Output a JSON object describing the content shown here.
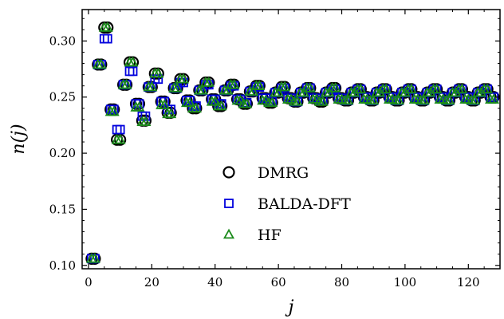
{
  "chart_data": {
    "type": "scatter",
    "title": "",
    "xlabel": "j",
    "ylabel": "n(j)",
    "xlim": [
      -2,
      130
    ],
    "ylim": [
      0.097,
      0.328
    ],
    "xticks": [
      0,
      20,
      40,
      60,
      80,
      100,
      120
    ],
    "yticks": [
      0.1,
      0.15,
      0.2,
      0.25,
      0.3
    ],
    "xtick_labels": [
      "0",
      "20",
      "40",
      "60",
      "80",
      "100",
      "120"
    ],
    "ytick_labels": [
      "0.10",
      "0.15",
      "0.20",
      "0.25",
      "0.30"
    ],
    "grid": false,
    "legend_position": "center-left",
    "x": [
      1,
      2,
      3,
      4,
      5,
      6,
      7,
      8,
      9,
      10,
      11,
      12,
      13,
      14,
      15,
      16,
      17,
      18,
      19,
      20,
      21,
      22,
      23,
      24,
      25,
      26,
      27,
      28,
      29,
      30,
      31,
      32,
      33,
      34,
      35,
      36,
      37,
      38,
      39,
      40,
      41,
      42,
      43,
      44,
      45,
      46,
      47,
      48,
      49,
      50,
      51,
      52,
      53,
      54,
      55,
      56,
      57,
      58,
      59,
      60,
      61,
      62,
      63,
      64,
      65,
      66,
      67,
      68,
      69,
      70,
      71,
      72,
      73,
      74,
      75,
      76,
      77,
      78,
      79,
      80,
      81,
      82,
      83,
      84,
      85,
      86,
      87,
      88,
      89,
      90,
      91,
      92,
      93,
      94,
      95,
      96,
      97,
      98,
      99,
      100,
      101,
      102,
      103,
      104,
      105,
      106,
      107,
      108,
      109,
      110,
      111,
      112,
      113,
      114,
      115,
      116,
      117,
      118,
      119,
      120,
      121,
      122,
      123,
      124,
      125,
      126,
      127,
      128
    ],
    "series": [
      {
        "name": "DMRG",
        "color": "#000000",
        "marker": "circle",
        "values": [
          0.106,
          0.106,
          0.279,
          0.279,
          0.312,
          0.312,
          0.239,
          0.239,
          0.212,
          0.212,
          0.261,
          0.261,
          0.281,
          0.281,
          0.244,
          0.244,
          0.229,
          0.229,
          0.259,
          0.259,
          0.271,
          0.271,
          0.246,
          0.246,
          0.236,
          0.236,
          0.258,
          0.258,
          0.266,
          0.266,
          0.247,
          0.247,
          0.24,
          0.24,
          0.256,
          0.256,
          0.263,
          0.263,
          0.248,
          0.248,
          0.242,
          0.242,
          0.256,
          0.256,
          0.261,
          0.261,
          0.248,
          0.248,
          0.244,
          0.244,
          0.255,
          0.255,
          0.26,
          0.26,
          0.249,
          0.249,
          0.245,
          0.245,
          0.254,
          0.254,
          0.259,
          0.259,
          0.249,
          0.249,
          0.246,
          0.246,
          0.254,
          0.254,
          0.258,
          0.258,
          0.249,
          0.249,
          0.246,
          0.246,
          0.254,
          0.254,
          0.258,
          0.258,
          0.249,
          0.249,
          0.247,
          0.247,
          0.254,
          0.254,
          0.257,
          0.257,
          0.25,
          0.25,
          0.247,
          0.247,
          0.254,
          0.254,
          0.257,
          0.257,
          0.25,
          0.25,
          0.247,
          0.247,
          0.254,
          0.254,
          0.257,
          0.257,
          0.25,
          0.25,
          0.247,
          0.247,
          0.254,
          0.254,
          0.257,
          0.257,
          0.25,
          0.25,
          0.247,
          0.247,
          0.254,
          0.254,
          0.257,
          0.257,
          0.25,
          0.25,
          0.247,
          0.247,
          0.254,
          0.254,
          0.257,
          0.257,
          0.25,
          0.25
        ]
      },
      {
        "name": "BALDA-DFT",
        "color": "#0000dd",
        "marker": "square",
        "values": [
          0.106,
          0.106,
          0.279,
          0.279,
          0.302,
          0.302,
          0.239,
          0.239,
          0.221,
          0.221,
          0.261,
          0.261,
          0.273,
          0.273,
          0.244,
          0.244,
          0.233,
          0.233,
          0.259,
          0.259,
          0.266,
          0.266,
          0.246,
          0.246,
          0.239,
          0.239,
          0.258,
          0.258,
          0.263,
          0.263,
          0.247,
          0.247,
          0.242,
          0.242,
          0.256,
          0.256,
          0.261,
          0.261,
          0.248,
          0.248,
          0.244,
          0.244,
          0.256,
          0.256,
          0.26,
          0.26,
          0.248,
          0.248,
          0.245,
          0.245,
          0.255,
          0.255,
          0.259,
          0.259,
          0.249,
          0.249,
          0.246,
          0.246,
          0.254,
          0.254,
          0.258,
          0.258,
          0.249,
          0.249,
          0.246,
          0.246,
          0.254,
          0.254,
          0.258,
          0.258,
          0.249,
          0.249,
          0.247,
          0.247,
          0.254,
          0.254,
          0.257,
          0.257,
          0.249,
          0.249,
          0.247,
          0.247,
          0.254,
          0.254,
          0.257,
          0.257,
          0.25,
          0.25,
          0.247,
          0.247,
          0.254,
          0.254,
          0.257,
          0.257,
          0.25,
          0.25,
          0.247,
          0.247,
          0.254,
          0.254,
          0.257,
          0.257,
          0.25,
          0.25,
          0.247,
          0.247,
          0.254,
          0.254,
          0.257,
          0.257,
          0.25,
          0.25,
          0.247,
          0.247,
          0.254,
          0.254,
          0.257,
          0.257,
          0.25,
          0.25,
          0.247,
          0.247,
          0.254,
          0.254,
          0.257,
          0.257,
          0.25,
          0.25
        ]
      },
      {
        "name": "HF",
        "color": "#1a8a1a",
        "marker": "triangle",
        "values": [
          0.106,
          0.106,
          0.279,
          0.279,
          0.312,
          0.312,
          0.237,
          0.237,
          0.212,
          0.212,
          0.261,
          0.261,
          0.281,
          0.281,
          0.241,
          0.241,
          0.228,
          0.228,
          0.259,
          0.259,
          0.271,
          0.271,
          0.243,
          0.243,
          0.235,
          0.235,
          0.258,
          0.258,
          0.266,
          0.266,
          0.245,
          0.245,
          0.24,
          0.24,
          0.256,
          0.256,
          0.263,
          0.263,
          0.246,
          0.246,
          0.242,
          0.242,
          0.256,
          0.256,
          0.261,
          0.261,
          0.247,
          0.247,
          0.244,
          0.244,
          0.255,
          0.255,
          0.26,
          0.26,
          0.247,
          0.247,
          0.245,
          0.245,
          0.254,
          0.254,
          0.259,
          0.259,
          0.248,
          0.248,
          0.246,
          0.246,
          0.254,
          0.254,
          0.258,
          0.258,
          0.248,
          0.248,
          0.246,
          0.246,
          0.254,
          0.254,
          0.258,
          0.258,
          0.248,
          0.248,
          0.247,
          0.247,
          0.254,
          0.254,
          0.257,
          0.257,
          0.248,
          0.248,
          0.247,
          0.247,
          0.254,
          0.254,
          0.257,
          0.257,
          0.248,
          0.248,
          0.247,
          0.247,
          0.254,
          0.254,
          0.257,
          0.257,
          0.248,
          0.248,
          0.247,
          0.247,
          0.254,
          0.254,
          0.257,
          0.257,
          0.248,
          0.248,
          0.247,
          0.247,
          0.254,
          0.254,
          0.257,
          0.257,
          0.248,
          0.248,
          0.247,
          0.247,
          0.254,
          0.254,
          0.257,
          0.257,
          0.248,
          0.248
        ]
      }
    ]
  }
}
